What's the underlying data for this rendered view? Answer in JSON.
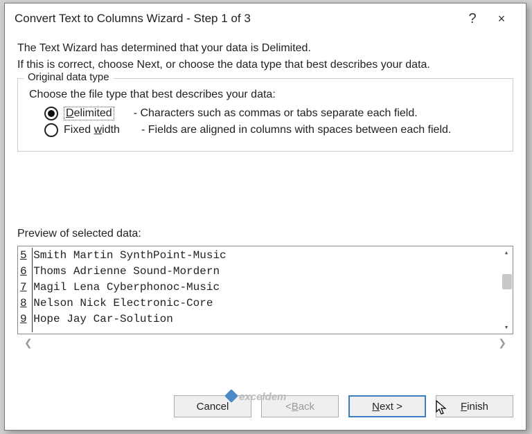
{
  "titlebar": {
    "title": "Convert Text to Columns Wizard - Step 1 of 3",
    "help_symbol": "?",
    "close_symbol": "×"
  },
  "intro": {
    "line1": "The Text Wizard has determined that your data is Delimited.",
    "line2": "If this is correct, choose Next, or choose the data type that best describes your data."
  },
  "fieldset": {
    "legend": "Original data type",
    "prompt": "Choose the file type that best describes your data:",
    "options": [
      {
        "label_pre": "",
        "label_u": "D",
        "label_post": "elimited",
        "desc": "- Characters such as commas or tabs separate each field.",
        "selected": true
      },
      {
        "label_pre": "Fixed ",
        "label_u": "w",
        "label_post": "idth",
        "desc": "- Fields are aligned in columns with spaces between each field.",
        "selected": false
      }
    ]
  },
  "preview": {
    "label": "Preview of selected data:",
    "rows": [
      {
        "n": "5",
        "text": "Smith Martin SynthPoint-Music"
      },
      {
        "n": "6",
        "text": "Thoms Adrienne Sound-Mordern"
      },
      {
        "n": "7",
        "text": "Magil Lena Cyberphonoc-Music"
      },
      {
        "n": "8",
        "text": "Nelson Nick Electronic-Core"
      },
      {
        "n": "9",
        "text": "Hope Jay Car-Solution"
      }
    ]
  },
  "buttons": {
    "cancel": "Cancel",
    "back_pre": "< ",
    "back_u": "B",
    "back_post": "ack",
    "next_u": "N",
    "next_post": "ext >",
    "finish_u": "F",
    "finish_post": "inish"
  },
  "watermark": "exceldem",
  "colors": {
    "primary_border": "#3a7fc4",
    "dialog_border": "#777777"
  }
}
